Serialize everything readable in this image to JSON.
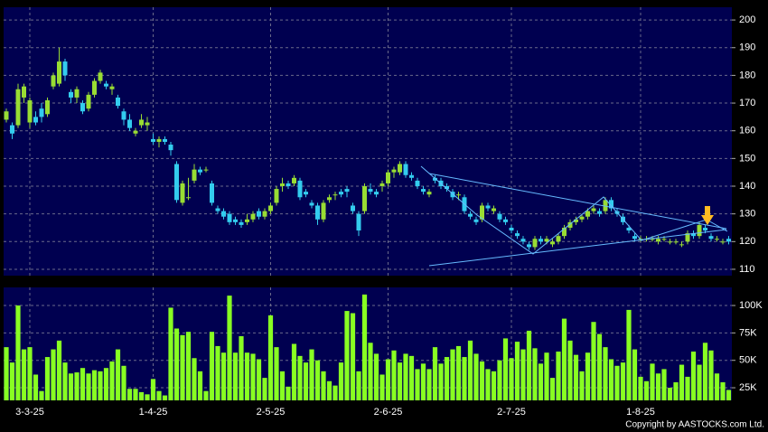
{
  "chart_data": [
    {
      "type": "candlestick",
      "categories": [
        null,
        null,
        null,
        null,
        "3-3-25",
        null,
        null,
        null,
        null,
        null,
        null,
        null,
        null,
        null,
        null,
        null,
        null,
        null,
        null,
        null,
        null,
        null,
        null,
        null,
        null,
        "1-4-25",
        null,
        null,
        null,
        null,
        null,
        null,
        null,
        null,
        null,
        null,
        null,
        null,
        null,
        null,
        null,
        null,
        null,
        null,
        null,
        "2-5-25",
        null,
        null,
        null,
        null,
        null,
        null,
        null,
        null,
        null,
        null,
        null,
        null,
        null,
        null,
        null,
        null,
        null,
        null,
        null,
        "2-6-25",
        null,
        null,
        null,
        null,
        null,
        null,
        null,
        null,
        null,
        null,
        null,
        null,
        null,
        null,
        null,
        null,
        null,
        null,
        null,
        null,
        "2-7-25",
        null,
        null,
        null,
        null,
        null,
        null,
        null,
        null,
        null,
        null,
        null,
        null,
        null,
        null,
        null,
        null,
        null,
        null,
        null,
        null,
        null,
        "1-8-25",
        null,
        null,
        null,
        null,
        null,
        null,
        null,
        null,
        null,
        null,
        null,
        null,
        null,
        null,
        null
      ],
      "open": [
        164,
        162,
        162,
        172,
        163,
        165,
        168,
        166,
        176,
        177,
        185,
        174,
        172,
        170,
        168,
        173,
        178,
        177,
        175,
        172,
        167,
        164,
        159,
        162,
        162,
        157,
        156,
        157,
        155,
        148,
        134,
        136,
        142,
        146,
        146,
        141,
        132,
        131,
        130,
        128,
        127,
        127,
        128,
        131,
        129,
        131,
        134,
        140,
        141,
        141,
        142,
        138,
        134,
        133,
        128,
        135,
        137,
        138,
        139,
        133,
        130,
        131,
        139,
        138,
        140,
        141,
        145,
        145,
        148,
        144,
        142,
        139,
        137,
        143,
        142,
        140,
        138,
        137,
        136,
        130,
        128,
        128,
        133,
        131,
        130,
        128,
        125,
        123,
        121,
        119,
        118,
        121,
        120,
        119,
        120,
        122,
        125,
        127,
        128,
        129,
        131,
        131,
        131,
        135,
        131,
        129,
        125,
        122,
        121,
        121,
        121,
        120,
        121,
        120,
        120,
        119,
        120,
        123,
        122,
        125,
        122,
        121,
        120,
        121
      ],
      "high": [
        168,
        163,
        177,
        177,
        172,
        167,
        170,
        172,
        181,
        190,
        186,
        175,
        176,
        171,
        174,
        179,
        182,
        178,
        177,
        173,
        168,
        166,
        161,
        166,
        165,
        159,
        158,
        158,
        156,
        149,
        142,
        143,
        148,
        147,
        147,
        142,
        133,
        132,
        131,
        129,
        128,
        130,
        131,
        132,
        132,
        134,
        140,
        143,
        142,
        144,
        143,
        139,
        135,
        134,
        135,
        137,
        138,
        139,
        140,
        134,
        131,
        141,
        141,
        139,
        142,
        146,
        147,
        149,
        149,
        145,
        143,
        140,
        139,
        144,
        143,
        141,
        139,
        138,
        137,
        131,
        129,
        134,
        134,
        133,
        131,
        129,
        126,
        124,
        122,
        120,
        122,
        122,
        122,
        121,
        123,
        126,
        128,
        129,
        130,
        132,
        133,
        132,
        136,
        136,
        132,
        130,
        126,
        123,
        122,
        122,
        122,
        122,
        122,
        121,
        121,
        120,
        124,
        124,
        127,
        126,
        123,
        122,
        121,
        122
      ],
      "low": [
        163,
        157,
        161,
        170,
        161,
        162,
        163,
        165,
        175,
        176,
        178,
        170,
        170,
        166,
        167,
        172,
        177,
        175,
        173,
        168,
        162,
        160,
        158,
        161,
        160,
        155,
        154,
        155,
        151,
        134,
        133,
        135,
        141,
        144,
        145,
        133,
        130,
        128,
        126,
        126,
        125,
        126,
        127,
        128,
        128,
        130,
        133,
        138,
        139,
        140,
        135,
        136,
        132,
        126,
        127,
        134,
        135,
        136,
        136,
        130,
        122,
        130,
        137,
        136,
        138,
        140,
        143,
        144,
        143,
        142,
        139,
        137,
        136,
        141,
        139,
        138,
        135,
        135,
        130,
        128,
        126,
        127,
        131,
        130,
        127,
        126,
        123,
        121,
        119,
        117,
        117,
        119,
        119,
        118,
        119,
        121,
        124,
        126,
        127,
        128,
        130,
        129,
        130,
        131,
        129,
        126,
        123,
        120,
        120,
        120,
        120,
        119,
        120,
        119,
        119,
        118,
        119,
        121,
        121,
        123,
        120,
        120,
        119,
        119
      ],
      "close": [
        167,
        159,
        175,
        176,
        171,
        163,
        165,
        171,
        180,
        185,
        180,
        172,
        175,
        167,
        173,
        178,
        181,
        176,
        176,
        169,
        164,
        161,
        160,
        164,
        163,
        156,
        157,
        156,
        153,
        135,
        141,
        136,
        146,
        145,
        146,
        134,
        131,
        129,
        127,
        127,
        126,
        128,
        130,
        129,
        131,
        133,
        139,
        141,
        140,
        143,
        136,
        137,
        133,
        128,
        134,
        136,
        137,
        137,
        138,
        131,
        124,
        140,
        138,
        137,
        141,
        145,
        146,
        148,
        144,
        143,
        140,
        138,
        138,
        142,
        140,
        139,
        136,
        137,
        131,
        129,
        127,
        133,
        132,
        132,
        128,
        127,
        124,
        122,
        120,
        118,
        121,
        120,
        121,
        120,
        122,
        125,
        127,
        128,
        129,
        131,
        132,
        130,
        135,
        132,
        130,
        127,
        124,
        121,
        121,
        121,
        121,
        121,
        121,
        120,
        120,
        119,
        123,
        122,
        126,
        124,
        121,
        121,
        120,
        120
      ],
      "up_color": "#99dd33",
      "down_color": "#33ccee",
      "ylim": [
        107.7,
        204.6
      ],
      "yticks": [
        110,
        120,
        130,
        140,
        150,
        160,
        170,
        180,
        190,
        200
      ],
      "grid": true
    },
    {
      "type": "bar",
      "values": [
        62000,
        48000,
        100000,
        60000,
        62000,
        37000,
        22000,
        53000,
        60000,
        68000,
        48000,
        38000,
        39000,
        43000,
        38000,
        41000,
        40000,
        43000,
        49000,
        60000,
        45000,
        24000,
        24000,
        21000,
        19000,
        33000,
        22000,
        18000,
        98000,
        79000,
        73000,
        76000,
        52000,
        40000,
        22000,
        76000,
        63000,
        57000,
        109000,
        57000,
        72000,
        57000,
        56000,
        51000,
        34000,
        91000,
        62000,
        40000,
        26000,
        65000,
        54000,
        48000,
        60000,
        50000,
        40000,
        31000,
        27000,
        48000,
        95000,
        93000,
        40000,
        110000,
        66000,
        56000,
        37000,
        51000,
        59000,
        48000,
        56000,
        54000,
        42000,
        47000,
        42000,
        62000,
        47000,
        53000,
        60000,
        63000,
        53000,
        68000,
        56000,
        49000,
        42000,
        40000,
        50000,
        70000,
        52000,
        67000,
        60000,
        77000,
        61000,
        47000,
        57000,
        34000,
        58000,
        88000,
        68000,
        55000,
        40000,
        57000,
        85000,
        74000,
        62000,
        51000,
        45000,
        48000,
        96000,
        60000,
        35000,
        31000,
        47000,
        38000,
        42000,
        25000,
        30000,
        46000,
        35000,
        58000,
        46000,
        66000,
        59000,
        38000,
        30000,
        23000
      ],
      "color": "#88ff22",
      "ylim": [
        13500,
        116500
      ],
      "yticks": [
        {
          "value": 25000,
          "label": "25K"
        },
        {
          "value": 50000,
          "label": "50K"
        },
        {
          "value": 75000,
          "label": "75K"
        },
        {
          "value": 100000,
          "label": "100K"
        }
      ],
      "grid": true
    }
  ],
  "footer": "Copyright by AASTOCKS.com Ltd."
}
